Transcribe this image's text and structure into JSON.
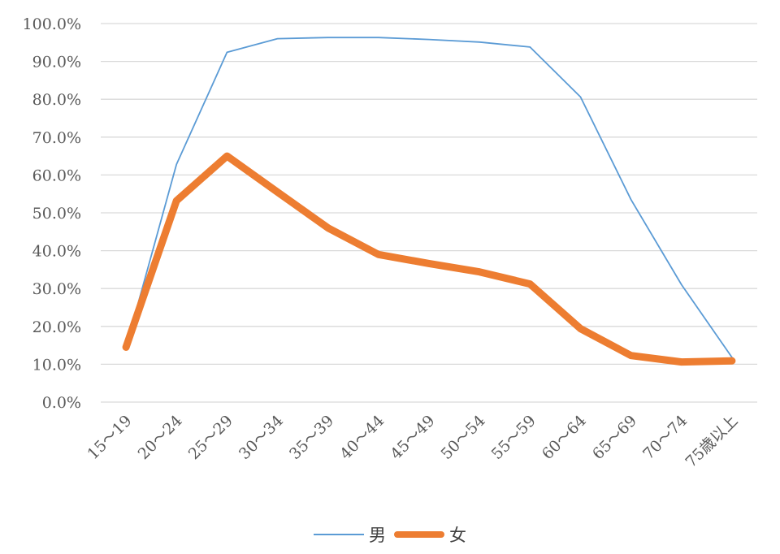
{
  "chart_data": {
    "type": "line",
    "title": "",
    "xlabel": "",
    "ylabel": "",
    "categories": [
      "15～19",
      "20～24",
      "25～29",
      "30～34",
      "35～39",
      "40～44",
      "45～49",
      "50～54",
      "55～59",
      "60～64",
      "65～69",
      "70～74",
      "75歳以上"
    ],
    "ylim": [
      0,
      100
    ],
    "yticks": [
      "0.0%",
      "10.0%",
      "20.0%",
      "30.0%",
      "40.0%",
      "50.0%",
      "60.0%",
      "70.0%",
      "80.0%",
      "90.0%",
      "100.0%"
    ],
    "grid": true,
    "legend_position": "bottom",
    "series": [
      {
        "name": "男",
        "color": "#5b9bd5",
        "line": "thin",
        "values": [
          14.5,
          62.8,
          92.4,
          96.0,
          96.3,
          96.3,
          95.8,
          95.1,
          93.8,
          80.6,
          53.5,
          31.0,
          11.8
        ]
      },
      {
        "name": "女",
        "color": "#ed7d31",
        "line": "thick",
        "values": [
          14.5,
          53.2,
          65.0,
          55.5,
          46.0,
          39.0,
          36.6,
          34.4,
          31.2,
          19.4,
          12.3,
          10.6,
          10.9
        ]
      }
    ]
  }
}
